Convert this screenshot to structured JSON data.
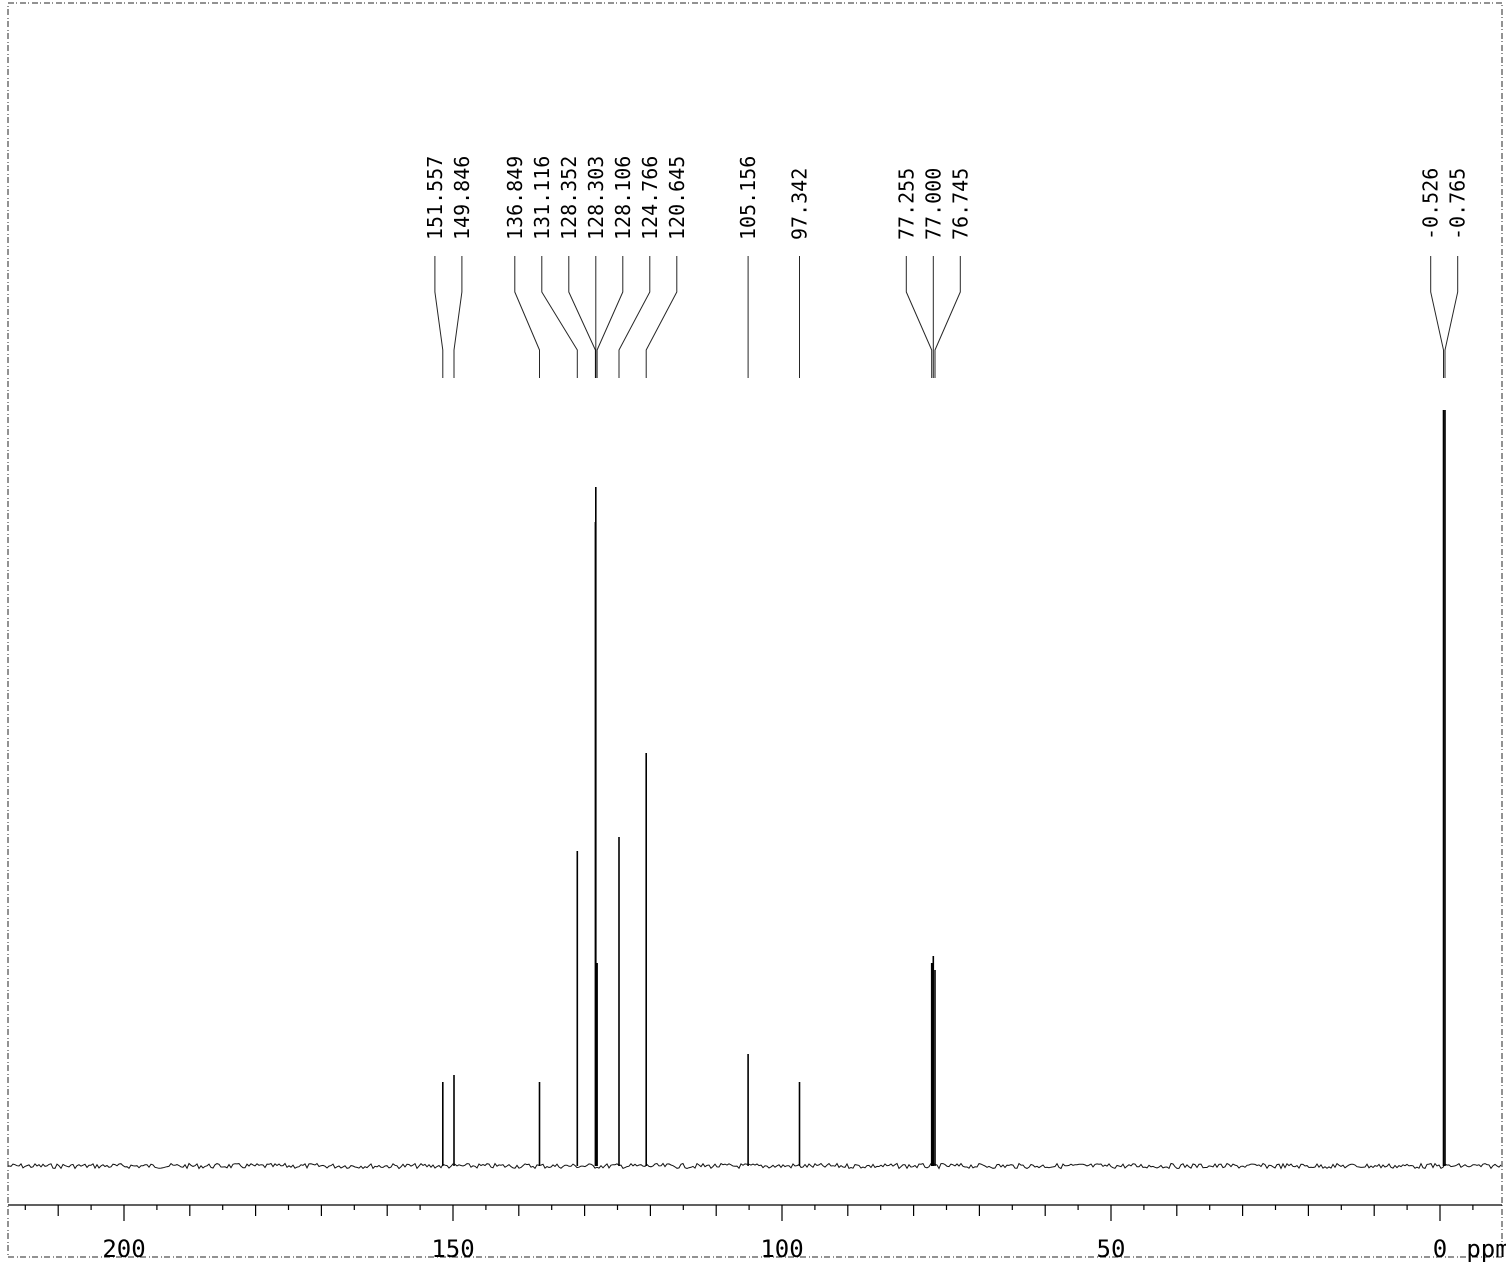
{
  "chart_data": {
    "type": "line",
    "title": "",
    "xlabel": "ppm",
    "ylabel": "",
    "x_reversed": true,
    "xlim": [
      220,
      -5
    ],
    "x_tick_labels": [
      "200",
      "150",
      "100",
      "50",
      "0"
    ],
    "x_tick_values": [
      200,
      150,
      100,
      50,
      0
    ],
    "minor_tick_step": 10,
    "unit_label": "ppm",
    "grid": false,
    "legend": "none",
    "peaks": [
      {
        "label": "151.557",
        "ppm": 151.557,
        "intensity": 0.12
      },
      {
        "label": "149.846",
        "ppm": 149.846,
        "intensity": 0.13
      },
      {
        "label": "136.849",
        "ppm": 136.849,
        "intensity": 0.12
      },
      {
        "label": "131.116",
        "ppm": 131.116,
        "intensity": 0.45
      },
      {
        "label": "128.352",
        "ppm": 128.352,
        "intensity": 0.92
      },
      {
        "label": "128.303",
        "ppm": 128.303,
        "intensity": 0.97
      },
      {
        "label": "128.106",
        "ppm": 128.106,
        "intensity": 0.29
      },
      {
        "label": "124.766",
        "ppm": 124.766,
        "intensity": 0.47
      },
      {
        "label": "120.645",
        "ppm": 120.645,
        "intensity": 0.59
      },
      {
        "label": "105.156",
        "ppm": 105.156,
        "intensity": 0.16
      },
      {
        "label": "97.342",
        "ppm": 97.342,
        "intensity": 0.12
      },
      {
        "label": "77.255",
        "ppm": 77.255,
        "intensity": 0.29
      },
      {
        "label": "77.000",
        "ppm": 77.0,
        "intensity": 0.3
      },
      {
        "label": "76.745",
        "ppm": 76.745,
        "intensity": 0.28
      },
      {
        "label": "-0.526",
        "ppm": -0.526,
        "intensity": 1.08
      },
      {
        "label": "-0.765",
        "ppm": -0.765,
        "intensity": 1.08
      }
    ],
    "label_groups": [
      {
        "labels": [
          "151.557",
          "149.846"
        ]
      },
      {
        "labels": [
          "136.849",
          "131.116",
          "128.352",
          "128.303",
          "128.106",
          "124.766",
          "120.645"
        ]
      },
      {
        "labels": [
          "105.156"
        ]
      },
      {
        "labels": [
          "97.342"
        ]
      },
      {
        "labels": [
          "77.255",
          "77.000",
          "76.745"
        ]
      },
      {
        "labels": [
          "-0.526",
          "-0.765"
        ]
      }
    ]
  },
  "colors": {
    "ink": "#000000",
    "background": "#ffffff"
  }
}
